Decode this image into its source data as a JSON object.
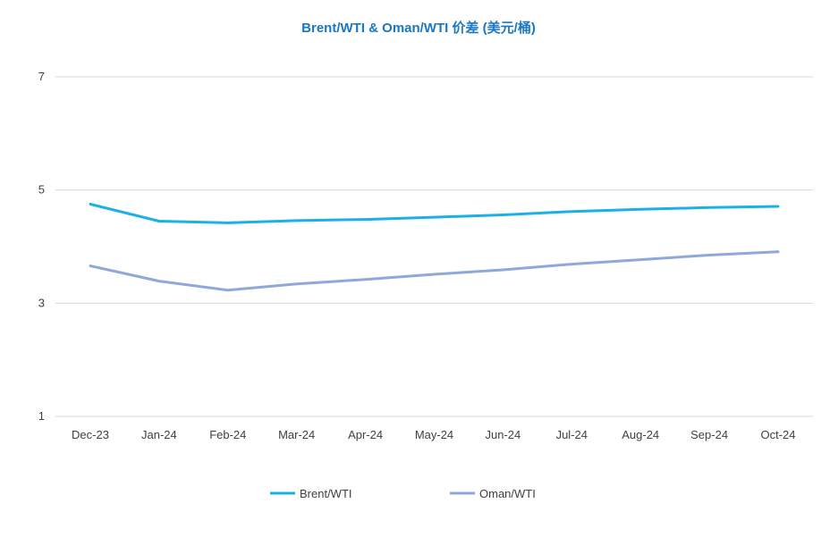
{
  "chart_data": {
    "type": "line",
    "title": "Brent/WTI & Oman/WTI 价差 (美元/桶)",
    "categories": [
      "Dec-23",
      "Jan-24",
      "Feb-24",
      "Mar-24",
      "Apr-24",
      "May-24",
      "Jun-24",
      "Jul-24",
      "Aug-24",
      "Sep-24",
      "Oct-24"
    ],
    "yticks": [
      "1",
      "3",
      "5",
      "7"
    ],
    "ylim": [
      1,
      7
    ],
    "grid": true,
    "legend_position": "bottom",
    "series": [
      {
        "name": "Brent/WTI",
        "color": "#1cb0e6",
        "values": [
          4.75,
          4.45,
          4.42,
          4.46,
          4.48,
          4.52,
          4.56,
          4.62,
          4.66,
          4.69,
          4.71
        ]
      },
      {
        "name": "Oman/WTI",
        "color": "#8fa8dc",
        "values": [
          3.66,
          3.39,
          3.23,
          3.34,
          3.42,
          3.51,
          3.59,
          3.69,
          3.77,
          3.85,
          3.91
        ]
      }
    ],
    "title_color": "#1a78c2",
    "grid_color": "#d9d9d9"
  }
}
